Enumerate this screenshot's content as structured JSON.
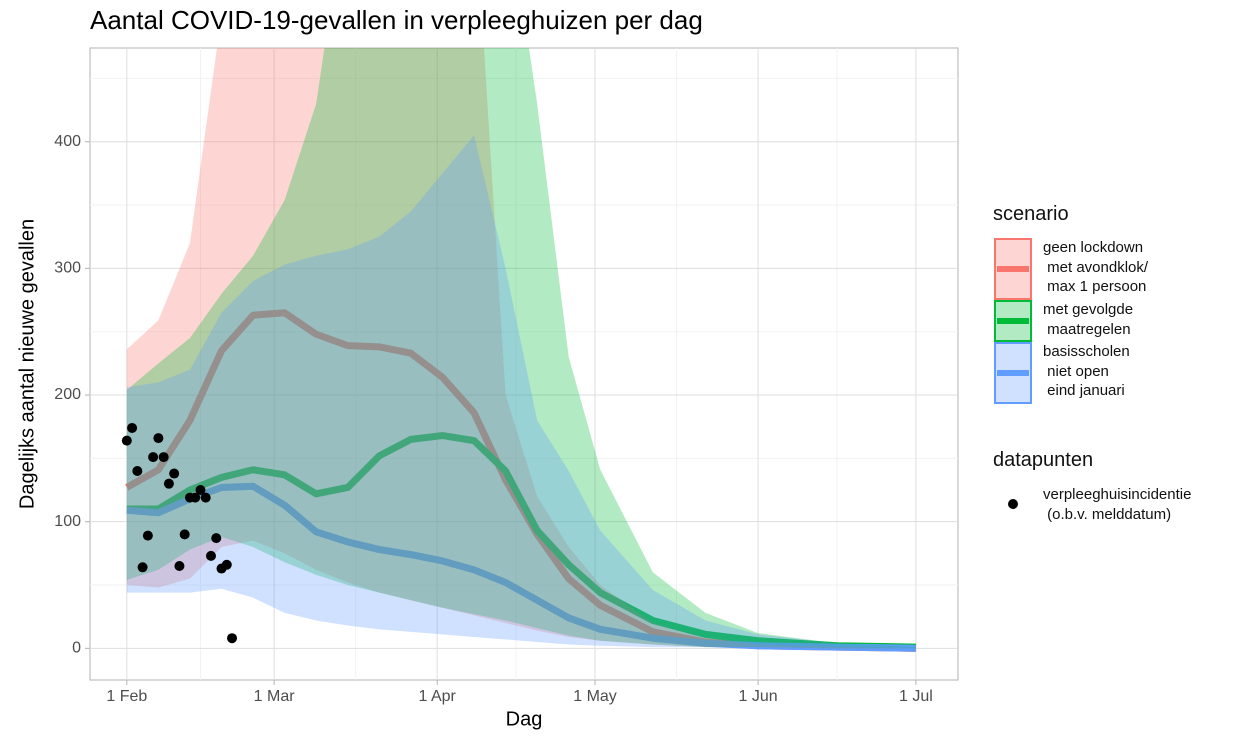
{
  "chart_data": {
    "type": "ribbon-line",
    "title": "Aantal COVID-19-gevallen in verpleeghuizen per dag",
    "x_label": "Dag",
    "y_label": "Dagelijks aantal nieuwe gevallen",
    "xlim": [
      -7,
      158
    ],
    "ylim": [
      -25,
      474
    ],
    "xticks": [
      {
        "value": 0,
        "label": "1 Feb"
      },
      {
        "value": 28,
        "label": "1 Mar"
      },
      {
        "value": 59,
        "label": "1 Apr"
      },
      {
        "value": 89,
        "label": "1 May"
      },
      {
        "value": 120,
        "label": "1 Jun"
      },
      {
        "value": 150,
        "label": "1 Jul"
      }
    ],
    "yticks": [
      0,
      100,
      200,
      300,
      400
    ],
    "x_minor_ticks": [
      14,
      43.5,
      74,
      104.5,
      135
    ],
    "y_minor_ticks": [
      50,
      150,
      250,
      350,
      450
    ],
    "grid": true,
    "legend_title": "scenario",
    "x": [
      0,
      6,
      12,
      18,
      24,
      30,
      36,
      42,
      48,
      54,
      60,
      66,
      72,
      78,
      84,
      90,
      100,
      110,
      120,
      135,
      150
    ],
    "series": [
      {
        "name": "geen lockdown\n met avondklok/\n max 1 persoon",
        "color": "#f8766d",
        "values": [
          127,
          141,
          180,
          235,
          263,
          265,
          248,
          239,
          238,
          233,
          214,
          186,
          133,
          90,
          55,
          34,
          13,
          5,
          2,
          1,
          0
        ],
        "lower": [
          50,
          48,
          55,
          80,
          85,
          75,
          62,
          52,
          44,
          38,
          32,
          26,
          20,
          14,
          9,
          6,
          3,
          1,
          1,
          0,
          0
        ],
        "upper": [
          236,
          259,
          320,
          500,
          600,
          600,
          600,
          600,
          600,
          600,
          600,
          600,
          200,
          120,
          80,
          50,
          20,
          8,
          3,
          1,
          0
        ]
      },
      {
        "name": "met gevolgde\n maatregelen",
        "color": "#00ba38",
        "values": [
          110,
          110,
          125,
          135,
          141,
          137,
          122,
          127,
          152,
          165,
          168,
          164,
          140,
          93,
          66,
          44,
          22,
          11,
          6,
          2,
          1
        ],
        "lower": [
          54,
          62,
          78,
          88,
          80,
          68,
          58,
          50,
          44,
          38,
          32,
          27,
          22,
          16,
          10,
          6,
          3,
          1,
          1,
          0,
          0
        ],
        "upper": [
          204,
          225,
          245,
          280,
          310,
          354,
          430,
          600,
          600,
          600,
          600,
          600,
          600,
          430,
          230,
          141,
          60,
          28,
          12,
          4,
          1
        ]
      },
      {
        "name": "basisscholen\n niet open\n eind januari",
        "color": "#619cff",
        "values": [
          109,
          107,
          118,
          127,
          128,
          113,
          92,
          84,
          78,
          74,
          69,
          62,
          52,
          38,
          24,
          15,
          8,
          4,
          2,
          1,
          0
        ],
        "lower": [
          44,
          44,
          44,
          47,
          40,
          28,
          22,
          18,
          15,
          13,
          11,
          9,
          7,
          5,
          3,
          2,
          1,
          1,
          0,
          0,
          0
        ],
        "upper": [
          206,
          210,
          220,
          265,
          290,
          303,
          310,
          315,
          325,
          345,
          375,
          405,
          300,
          180,
          140,
          93,
          46,
          22,
          11,
          4,
          1
        ]
      }
    ],
    "points_legend_title": "datapunten",
    "points": {
      "name": "verpleeghuisincidentie\n (o.b.v. melddatum)",
      "color": "#000000",
      "x": [
        0,
        1,
        2,
        3,
        4,
        5,
        6,
        7,
        8,
        9,
        10,
        11,
        12,
        13,
        14,
        15,
        16,
        17,
        18,
        19,
        20
      ],
      "values": [
        164,
        174,
        140,
        64,
        89,
        151,
        166,
        151,
        130,
        138,
        65,
        90,
        119,
        119,
        125,
        119,
        73,
        87,
        63,
        66,
        8
      ]
    }
  }
}
